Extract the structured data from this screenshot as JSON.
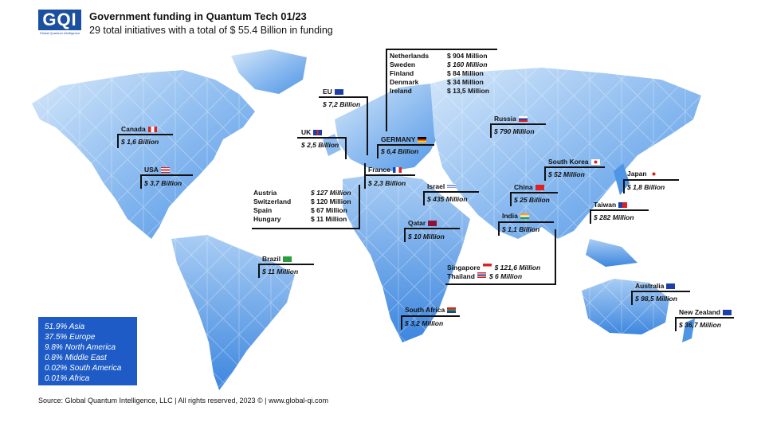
{
  "header": {
    "logo_text": "GQI",
    "logo_subtext": "Global Quantum Intelligence",
    "title": "Government funding in Quantum Tech 01/23",
    "subtitle": "29 total initiatives with a total of $ 55.4 Billion in funding"
  },
  "countries": {
    "canada": {
      "name": "Canada",
      "value": "$ 1,6 Billion"
    },
    "usa": {
      "name": "USA",
      "value": "$ 3,7 Billion"
    },
    "brazil": {
      "name": "Brazil",
      "value": "$ 11 Million"
    },
    "eu": {
      "name": "EU",
      "value": "$ 7,2 Billion"
    },
    "uk": {
      "name": "UK",
      "value": "$ 2,5 Billion"
    },
    "germany": {
      "name": "GERMANY",
      "value": "$ 6,4 Billion"
    },
    "france": {
      "name": "France",
      "value": "$ 2,3 Billion"
    },
    "israel": {
      "name": "Israel",
      "value": "$ 435 Million"
    },
    "qatar": {
      "name": "Qatar",
      "value": "$ 10 Million"
    },
    "south_africa": {
      "name": "South Africa",
      "value": "$ 3,2 Million"
    },
    "russia": {
      "name": "Russia",
      "value": "$ 790 Million"
    },
    "south_korea": {
      "name": "South Korea",
      "value": "$ 52 Million"
    },
    "japan": {
      "name": "Japan",
      "value": "$ 1,8 Billion"
    },
    "china": {
      "name": "China",
      "value": "$ 25 Billion"
    },
    "india": {
      "name": "India",
      "value": "$ 1,1 Billion"
    },
    "taiwan": {
      "name": "Taiwan",
      "value": "$ 282 Million"
    },
    "australia": {
      "name": "Australia",
      "value": "$ 98,5 Million"
    },
    "new_zealand": {
      "name": "New Zealand",
      "value": "$ 36,7 Million"
    }
  },
  "nordic_group": [
    {
      "name": "Netherlands",
      "value": "$ 904 Million",
      "italic": false
    },
    {
      "name": "Sweden",
      "value": "$ 160 Million",
      "italic": true
    },
    {
      "name": "Finland",
      "value": "$ 84 Million",
      "italic": false
    },
    {
      "name": "Denmark",
      "value": "$ 34 Million",
      "italic": false
    },
    {
      "name": "Ireland",
      "value": "$ 13,5 Million",
      "italic": false
    }
  ],
  "central_group": [
    {
      "name": "Austria",
      "value": "$ 127 Million",
      "italic": true
    },
    {
      "name": "Switzerland",
      "value": "$ 120 Million",
      "italic": false
    },
    {
      "name": "Spain",
      "value": "$ 67 Million",
      "italic": false
    },
    {
      "name": "Hungary",
      "value": "$ 11 Million",
      "italic": false
    }
  ],
  "asean_group": [
    {
      "name": "Singapore",
      "value": "$ 121,6 Million"
    },
    {
      "name": "Thailand",
      "value": "$ 6 Million"
    }
  ],
  "legend": [
    "51.9% Asia",
    "37.5% Europe",
    "9.8% North America",
    "0.8% Middle East",
    "0.02% South America",
    "0.01% Africa"
  ],
  "source": "Source: Global Quantum Intelligence, LLC | All rights reserved, 2023 © | www.global-qi.com",
  "colors": {
    "map_light": "#cfe3f8",
    "map_mid": "#8fbdf0",
    "map_dark": "#4f95e6",
    "legend_bg": "#1e5bc6",
    "brand": "#1b4fa0"
  }
}
